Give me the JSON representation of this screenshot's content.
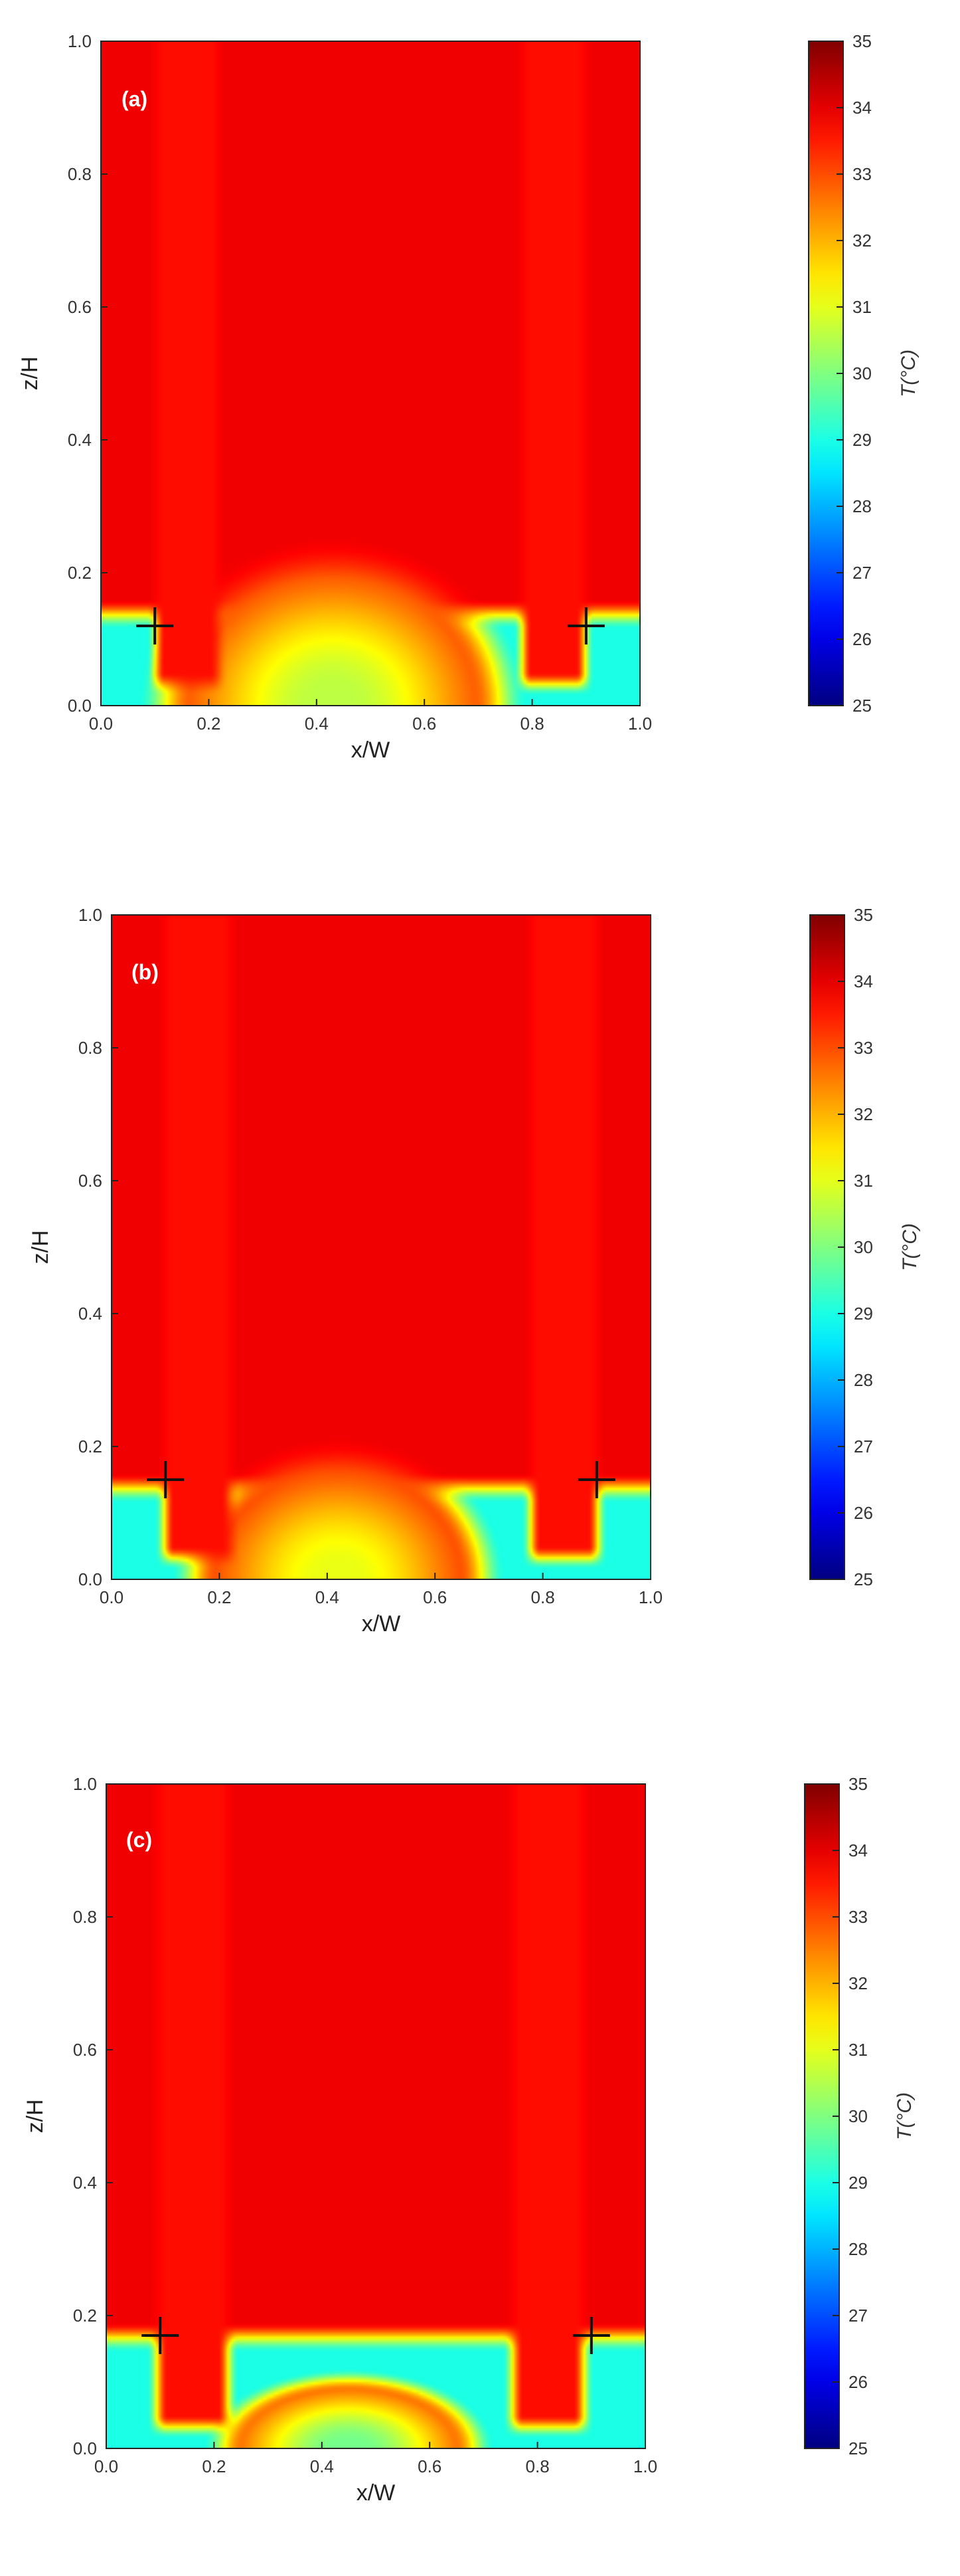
{
  "chart_data": [
    {
      "type": "heatmap",
      "panel_label": "(a)",
      "xlabel": "x/W",
      "ylabel": "z/H",
      "xlim": [
        0.0,
        1.0
      ],
      "ylim": [
        0.0,
        1.0
      ],
      "x_ticks": [
        "0.0",
        "0.2",
        "0.4",
        "0.6",
        "0.8",
        "1.0"
      ],
      "y_ticks": [
        "0.0",
        "0.2",
        "0.4",
        "0.6",
        "0.8",
        "1.0"
      ],
      "colorbar": {
        "label": "T(°C)",
        "min": 25,
        "max": 35,
        "ticks": [
          "25",
          "26",
          "27",
          "28",
          "29",
          "30",
          "31",
          "32",
          "33",
          "34",
          "35"
        ],
        "colormap": "jet"
      },
      "markers": [
        {
          "symbol": "+",
          "x": 0.1,
          "y": 0.12
        },
        {
          "symbol": "+",
          "x": 0.9,
          "y": 0.12
        }
      ],
      "field": {
        "background_T": 35,
        "cool_layer": {
          "top_z": 0.15,
          "T": 29.5
        },
        "plume": {
          "center_x": 0.43,
          "half_width": 0.36,
          "top_z": 0.26,
          "T_min": 31.3
        },
        "channels": [
          {
            "center_x": 0.16,
            "half_width": 0.075,
            "bottom_z": 0.03
          },
          {
            "center_x": 0.84,
            "half_width": 0.075,
            "bottom_z": 0.03
          }
        ]
      }
    },
    {
      "type": "heatmap",
      "panel_label": "(b)",
      "xlabel": "x/W",
      "ylabel": "z/H",
      "xlim": [
        0.0,
        1.0
      ],
      "ylim": [
        0.0,
        1.0
      ],
      "x_ticks": [
        "0.0",
        "0.2",
        "0.4",
        "0.6",
        "0.8",
        "1.0"
      ],
      "y_ticks": [
        "0.0",
        "0.2",
        "0.4",
        "0.6",
        "0.8",
        "1.0"
      ],
      "colorbar": {
        "label": "T(°C)",
        "min": 25,
        "max": 35,
        "ticks": [
          "25",
          "26",
          "27",
          "28",
          "29",
          "30",
          "31",
          "32",
          "33",
          "34",
          "35"
        ],
        "colormap": "jet"
      },
      "markers": [
        {
          "symbol": "+",
          "x": 0.1,
          "y": 0.15
        },
        {
          "symbol": "+",
          "x": 0.9,
          "y": 0.15
        }
      ],
      "field": {
        "background_T": 35,
        "cool_layer": {
          "top_z": 0.15,
          "T": 29.5
        },
        "plume": {
          "center_x": 0.42,
          "half_width": 0.31,
          "top_z": 0.22,
          "T_min": 31.8
        },
        "channels": [
          {
            "center_x": 0.16,
            "half_width": 0.08,
            "bottom_z": 0.03
          },
          {
            "center_x": 0.84,
            "half_width": 0.08,
            "bottom_z": 0.03
          }
        ]
      }
    },
    {
      "type": "heatmap",
      "panel_label": "(c)",
      "xlabel": "x/W",
      "ylabel": "z/H",
      "xlim": [
        0.0,
        1.0
      ],
      "ylim": [
        0.0,
        1.0
      ],
      "x_ticks": [
        "0.0",
        "0.2",
        "0.4",
        "0.6",
        "0.8",
        "1.0"
      ],
      "y_ticks": [
        "0.0",
        "0.2",
        "0.4",
        "0.6",
        "0.8",
        "1.0"
      ],
      "colorbar": {
        "label": "T(°C)",
        "min": 25,
        "max": 35,
        "ticks": [
          "25",
          "26",
          "27",
          "28",
          "29",
          "30",
          "31",
          "32",
          "33",
          "34",
          "35"
        ],
        "colormap": "jet"
      },
      "markers": [
        {
          "symbol": "+",
          "x": 0.1,
          "y": 0.17
        },
        {
          "symbol": "+",
          "x": 0.9,
          "y": 0.17
        }
      ],
      "field": {
        "background_T": 35,
        "cool_layer": {
          "top_z": 0.18,
          "T": 29.5
        },
        "plume": {
          "center_x": 0.45,
          "half_width": 0.27,
          "top_z": 0.12,
          "T_min": 30.5
        },
        "channels": [
          {
            "center_x": 0.16,
            "half_width": 0.085,
            "bottom_z": 0.03
          },
          {
            "center_x": 0.82,
            "half_width": 0.085,
            "bottom_z": 0.03
          }
        ]
      }
    }
  ]
}
